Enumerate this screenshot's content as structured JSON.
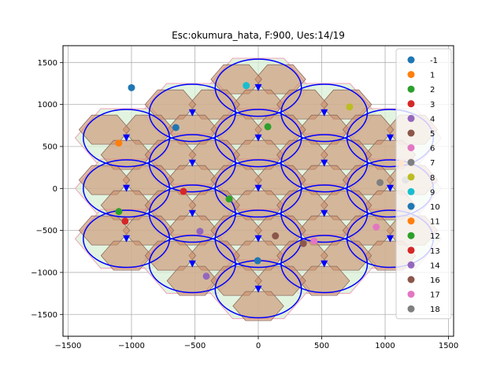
{
  "chart_data": {
    "type": "scatter",
    "title": "Esc:okumura_hata, F:900, Ues:14/19",
    "xlabel": "",
    "ylabel": "",
    "xlim": [
      -1540,
      1540
    ],
    "ylim": [
      -1760,
      1700
    ],
    "x_ticks": [
      -1500,
      -1000,
      -500,
      0,
      500,
      1000,
      1500
    ],
    "y_ticks": [
      -1500,
      -1000,
      -500,
      0,
      500,
      1000,
      1500
    ],
    "grid": true,
    "legend_position": "top-right",
    "colors": {
      "cell_fill": "#cc8e6b",
      "cell_outer_fill": "#d8f0d6",
      "cell_outer_edge": "#f0a0b8",
      "cell_edge": "#8c6c60",
      "coverage": "#0000ff",
      "bs_marker": "#0000ff",
      "grid": "#b0b0b0"
    },
    "hex_radius": 200,
    "coverage_radius": 340,
    "base_stations": [
      {
        "x": 0,
        "y": 1200
      },
      {
        "x": -520,
        "y": 900
      },
      {
        "x": 520,
        "y": 900
      },
      {
        "x": -1040,
        "y": 600
      },
      {
        "x": 0,
        "y": 600
      },
      {
        "x": 1040,
        "y": 600
      },
      {
        "x": -520,
        "y": 300
      },
      {
        "x": 520,
        "y": 300
      },
      {
        "x": -1040,
        "y": 0
      },
      {
        "x": 0,
        "y": 0
      },
      {
        "x": 1040,
        "y": 0
      },
      {
        "x": -520,
        "y": -300
      },
      {
        "x": 520,
        "y": -300
      },
      {
        "x": -1040,
        "y": -600
      },
      {
        "x": 0,
        "y": -600
      },
      {
        "x": 1040,
        "y": -600
      },
      {
        "x": -520,
        "y": -900
      },
      {
        "x": 520,
        "y": -900
      },
      {
        "x": 0,
        "y": -1200
      }
    ],
    "series": [
      {
        "name": "-1",
        "color": "#1f77b4",
        "points": [
          [
            -1000,
            1200
          ]
        ]
      },
      {
        "name": "1",
        "color": "#ff7f0e",
        "points": [
          [
            -1100,
            540
          ]
        ]
      },
      {
        "name": "2",
        "color": "#2ca02c",
        "points": [
          [
            75,
            735
          ]
        ]
      },
      {
        "name": "3",
        "color": "#d62728",
        "points": [
          [
            -1050,
            -390
          ]
        ]
      },
      {
        "name": "4",
        "color": "#9467bd",
        "points": [
          [
            -460,
            -510
          ]
        ]
      },
      {
        "name": "5",
        "color": "#8c564b",
        "points": [
          [
            355,
            -655
          ]
        ]
      },
      {
        "name": "6",
        "color": "#e377c2",
        "points": [
          [
            440,
            -625
          ]
        ]
      },
      {
        "name": "7",
        "color": "#7f7f7f",
        "points": [
          [
            1160,
            100
          ]
        ]
      },
      {
        "name": "8",
        "color": "#bcbd22",
        "points": [
          [
            720,
            970
          ]
        ]
      },
      {
        "name": "9",
        "color": "#17becf",
        "points": [
          [
            -95,
            1225
          ]
        ]
      },
      {
        "name": "10",
        "color": "#1f77b4",
        "points": [
          [
            -650,
            725
          ],
          [
            -5,
            -860
          ]
        ]
      },
      {
        "name": "11",
        "color": "#ff7f0e",
        "points": [
          [
            1125,
            300
          ]
        ]
      },
      {
        "name": "12",
        "color": "#2ca02c",
        "points": [
          [
            -1100,
            -275
          ],
          [
            -230,
            -125
          ]
        ]
      },
      {
        "name": "13",
        "color": "#d62728",
        "points": [
          [
            -590,
            -35
          ]
        ]
      },
      {
        "name": "14",
        "color": "#9467bd",
        "points": [
          [
            -410,
            -1045
          ]
        ]
      },
      {
        "name": "16",
        "color": "#8c564b",
        "points": [
          [
            135,
            -565
          ]
        ]
      },
      {
        "name": "17",
        "color": "#e377c2",
        "points": [
          [
            930,
            -460
          ]
        ]
      },
      {
        "name": "18",
        "color": "#7f7f7f",
        "points": [
          [
            960,
            70
          ]
        ]
      }
    ]
  }
}
